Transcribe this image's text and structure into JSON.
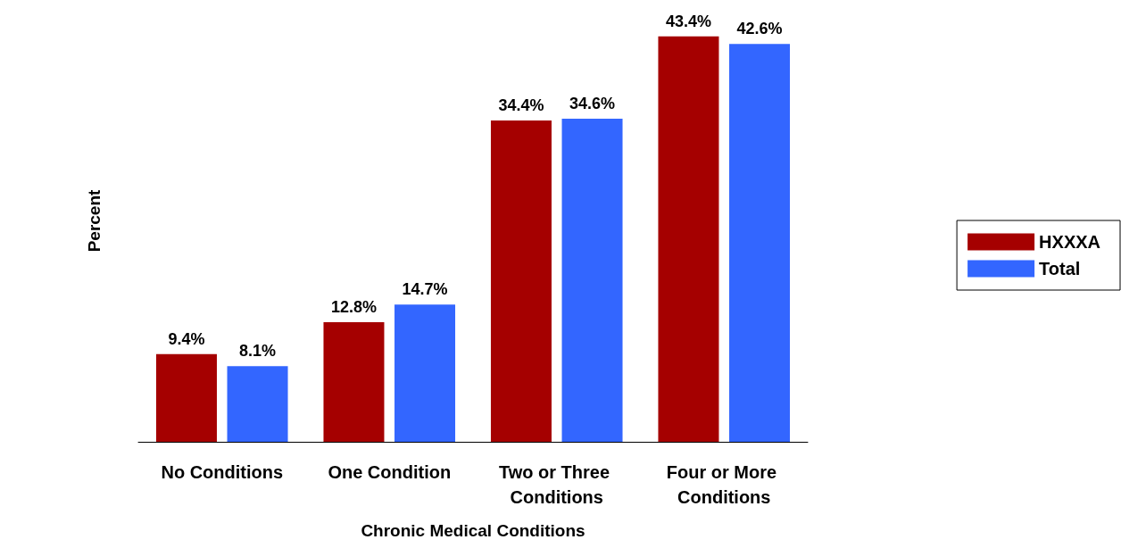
{
  "chart_data": {
    "type": "bar",
    "xlabel": "Chronic Medical Conditions",
    "ylabel": "Percent",
    "categories": [
      "No Conditions",
      "One Condition",
      "Two or Three Conditions",
      "Four or More Conditions"
    ],
    "series": [
      {
        "name": "HXXXA",
        "color": "#a50000",
        "values": [
          9.4,
          12.8,
          34.4,
          43.4
        ],
        "value_labels": [
          "9.4%",
          "12.8%",
          "34.4%",
          "43.4%"
        ]
      },
      {
        "name": "Total",
        "color": "#3366ff",
        "values": [
          8.1,
          14.7,
          34.6,
          42.6
        ],
        "value_labels": [
          "8.1%",
          "14.7%",
          "34.6%",
          "42.6%"
        ]
      }
    ],
    "legend": "right",
    "grid": false
  }
}
